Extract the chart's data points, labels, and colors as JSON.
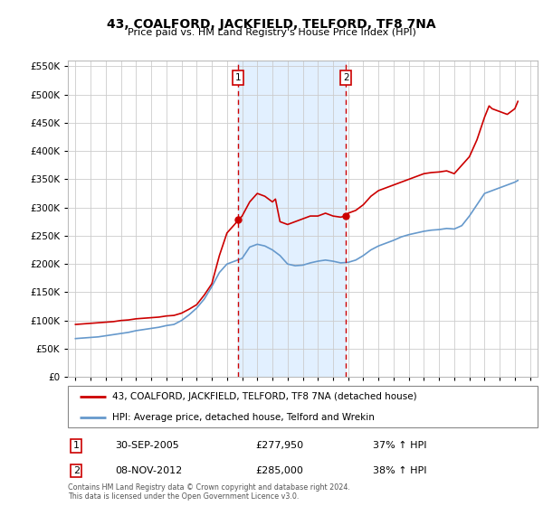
{
  "title": "43, COALFORD, JACKFIELD, TELFORD, TF8 7NA",
  "subtitle": "Price paid vs. HM Land Registry's House Price Index (HPI)",
  "legend_line1": "43, COALFORD, JACKFIELD, TELFORD, TF8 7NA (detached house)",
  "legend_line2": "HPI: Average price, detached house, Telford and Wrekin",
  "annotation1_label": "1",
  "annotation1_date": "30-SEP-2005",
  "annotation1_price": "£277,950",
  "annotation1_hpi": "37% ↑ HPI",
  "annotation2_label": "2",
  "annotation2_date": "08-NOV-2012",
  "annotation2_price": "£285,000",
  "annotation2_hpi": "38% ↑ HPI",
  "footer": "Contains HM Land Registry data © Crown copyright and database right 2024.\nThis data is licensed under the Open Government Licence v3.0.",
  "red_color": "#cc0000",
  "blue_color": "#6699cc",
  "marker1_x": 2005.75,
  "marker1_y": 277950,
  "marker2_x": 2012.85,
  "marker2_y": 285000,
  "vline1_x": 2005.75,
  "vline2_x": 2012.85,
  "shade_xmin": 2005.75,
  "shade_xmax": 2012.85,
  "shade_color": "#ddeeff",
  "ylim_min": 0,
  "ylim_max": 560000,
  "xlim_min": 1994.5,
  "xlim_max": 2025.5,
  "yticks": [
    0,
    50000,
    100000,
    150000,
    200000,
    250000,
    300000,
    350000,
    400000,
    450000,
    500000,
    550000
  ],
  "xticks": [
    1995,
    1996,
    1997,
    1998,
    1999,
    2000,
    2001,
    2002,
    2003,
    2004,
    2005,
    2006,
    2007,
    2008,
    2009,
    2010,
    2011,
    2012,
    2013,
    2014,
    2015,
    2016,
    2017,
    2018,
    2019,
    2020,
    2021,
    2022,
    2023,
    2024,
    2025
  ],
  "red_data": {
    "x": [
      1995.0,
      1995.5,
      1996.0,
      1996.5,
      1997.0,
      1997.5,
      1998.0,
      1998.5,
      1999.0,
      1999.5,
      2000.0,
      2000.5,
      2001.0,
      2001.5,
      2002.0,
      2002.5,
      2003.0,
      2003.5,
      2004.0,
      2004.5,
      2005.0,
      2005.5,
      2005.75,
      2006.0,
      2006.5,
      2007.0,
      2007.5,
      2008.0,
      2008.2,
      2008.5,
      2009.0,
      2009.5,
      2010.0,
      2010.5,
      2011.0,
      2011.5,
      2012.0,
      2012.5,
      2012.85,
      2013.0,
      2013.5,
      2014.0,
      2014.5,
      2015.0,
      2015.5,
      2016.0,
      2016.5,
      2017.0,
      2017.5,
      2018.0,
      2018.5,
      2019.0,
      2019.5,
      2020.0,
      2020.5,
      2021.0,
      2021.5,
      2022.0,
      2022.3,
      2022.5,
      2023.0,
      2023.5,
      2024.0,
      2024.2
    ],
    "y": [
      93000,
      94000,
      95000,
      96000,
      97000,
      98000,
      100000,
      101000,
      103000,
      104000,
      105000,
      106000,
      108000,
      109000,
      113000,
      120000,
      128000,
      145000,
      165000,
      215000,
      255000,
      270000,
      277950,
      285000,
      310000,
      325000,
      320000,
      310000,
      315000,
      275000,
      270000,
      275000,
      280000,
      285000,
      285000,
      290000,
      285000,
      283000,
      285000,
      290000,
      295000,
      305000,
      320000,
      330000,
      335000,
      340000,
      345000,
      350000,
      355000,
      360000,
      362000,
      363000,
      365000,
      360000,
      375000,
      390000,
      420000,
      460000,
      480000,
      475000,
      470000,
      465000,
      475000,
      488000
    ]
  },
  "blue_data": {
    "x": [
      1995.0,
      1995.5,
      1996.0,
      1996.5,
      1997.0,
      1997.5,
      1998.0,
      1998.5,
      1999.0,
      1999.5,
      2000.0,
      2000.5,
      2001.0,
      2001.5,
      2002.0,
      2002.5,
      2003.0,
      2003.5,
      2004.0,
      2004.5,
      2005.0,
      2005.5,
      2006.0,
      2006.5,
      2007.0,
      2007.5,
      2008.0,
      2008.5,
      2009.0,
      2009.5,
      2010.0,
      2010.5,
      2011.0,
      2011.5,
      2012.0,
      2012.5,
      2013.0,
      2013.5,
      2014.0,
      2014.5,
      2015.0,
      2015.5,
      2016.0,
      2016.5,
      2017.0,
      2017.5,
      2018.0,
      2018.5,
      2019.0,
      2019.5,
      2020.0,
      2020.5,
      2021.0,
      2021.5,
      2022.0,
      2022.5,
      2023.0,
      2023.5,
      2024.0,
      2024.2
    ],
    "y": [
      68000,
      69000,
      70000,
      71000,
      73000,
      75000,
      77000,
      79000,
      82000,
      84000,
      86000,
      88000,
      91000,
      93000,
      100000,
      110000,
      122000,
      138000,
      160000,
      185000,
      200000,
      205000,
      210000,
      230000,
      235000,
      232000,
      225000,
      215000,
      200000,
      197000,
      198000,
      202000,
      205000,
      207000,
      205000,
      202000,
      203000,
      207000,
      215000,
      225000,
      232000,
      237000,
      242000,
      248000,
      252000,
      255000,
      258000,
      260000,
      261000,
      263000,
      262000,
      268000,
      285000,
      305000,
      325000,
      330000,
      335000,
      340000,
      345000,
      348000
    ]
  }
}
